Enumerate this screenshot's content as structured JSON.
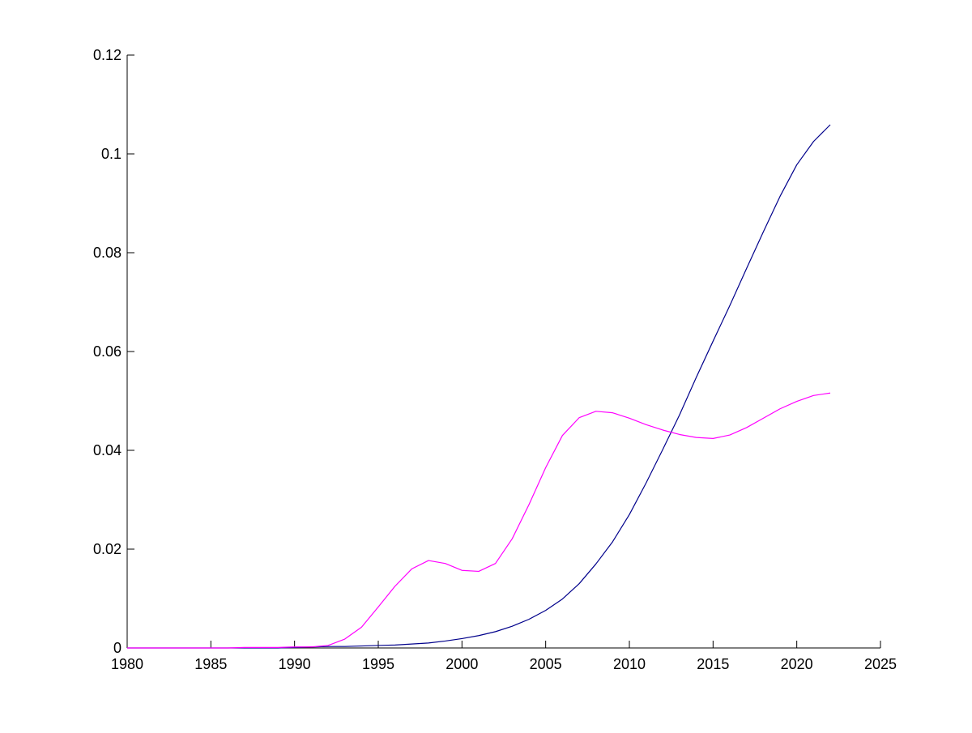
{
  "chart_data": {
    "type": "line",
    "title": "",
    "xlabel": "",
    "ylabel": "",
    "xlim": [
      1980,
      2025
    ],
    "ylim": [
      0,
      0.12
    ],
    "grid": false,
    "legend": "none",
    "x_ticks": [
      "1980",
      "1985",
      "1990",
      "1995",
      "2000",
      "2005",
      "2010",
      "2015",
      "2020",
      "2025"
    ],
    "y_ticks": [
      "0",
      "0.02",
      "0.04",
      "0.06",
      "0.08",
      "0.1",
      "0.12"
    ],
    "x": [
      1980,
      1981,
      1982,
      1983,
      1984,
      1985,
      1986,
      1987,
      1988,
      1989,
      1990,
      1991,
      1992,
      1993,
      1994,
      1995,
      1996,
      1997,
      1998,
      1999,
      2000,
      2001,
      2002,
      2003,
      2004,
      2005,
      2006,
      2007,
      2008,
      2009,
      2010,
      2011,
      2012,
      2013,
      2014,
      2015,
      2016,
      2017,
      2018,
      2019,
      2020,
      2021,
      2022
    ],
    "series": [
      {
        "color": "#00008b",
        "values": [
          0,
          0,
          0,
          0,
          0,
          0,
          0,
          0,
          0,
          0,
          0.0001,
          0.0002,
          0.0003,
          0.0003,
          0.0004,
          0.0005,
          0.0006,
          0.0008,
          0.001,
          0.0014,
          0.0019,
          0.0025,
          0.0033,
          0.0044,
          0.0058,
          0.0076,
          0.0099,
          0.013,
          0.017,
          0.0215,
          0.027,
          0.0334,
          0.0402,
          0.0472,
          0.0548,
          0.0621,
          0.0693,
          0.0768,
          0.0842,
          0.0914,
          0.0978,
          0.1025,
          0.1059
        ]
      },
      {
        "color": "#ff00ff",
        "values": [
          0,
          0,
          0,
          0,
          0,
          0,
          0,
          0.0001,
          0.0001,
          0.0001,
          0.0002,
          0.0002,
          0.0005,
          0.0018,
          0.0042,
          0.0083,
          0.0125,
          0.016,
          0.0177,
          0.0171,
          0.0157,
          0.0155,
          0.0171,
          0.0221,
          0.029,
          0.0365,
          0.043,
          0.0466,
          0.0479,
          0.0476,
          0.0465,
          0.0452,
          0.0441,
          0.0432,
          0.0426,
          0.0424,
          0.0431,
          0.0446,
          0.0465,
          0.0484,
          0.0499,
          0.0511,
          0.0516
        ]
      }
    ]
  }
}
